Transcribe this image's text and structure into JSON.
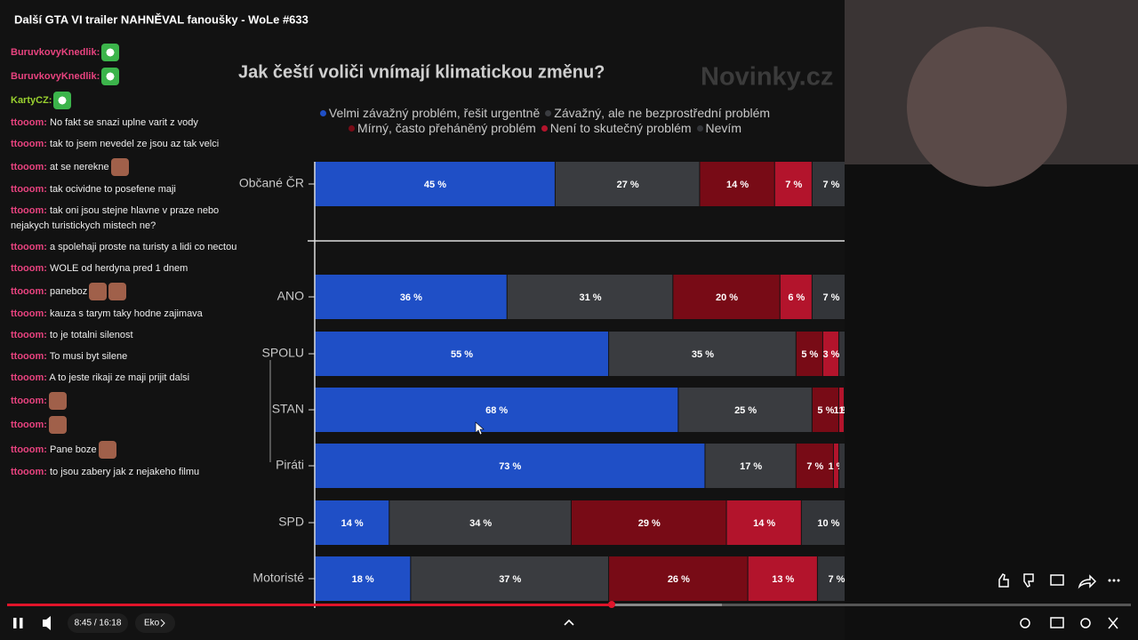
{
  "video_title": "Další GTA VI trailer NAHNĚVAL fanoušky - WoLe #633",
  "chat": [
    {
      "user": "BuruvkovyKnedlik:",
      "color": "#e8437f",
      "emotes": 1
    },
    {
      "user": "BuruvkovyKnedlik:",
      "color": "#e8437f",
      "emotes": 1
    },
    {
      "user": "KartyCZ:",
      "color": "#9ad12f",
      "emotes": 1
    },
    {
      "user": "ttooom:",
      "color": "#e8437f",
      "text": "No fakt se snazi uplne varit z vody"
    },
    {
      "user": "ttooom:",
      "color": "#e8437f",
      "text": "tak to jsem nevedel ze jsou az tak velci"
    },
    {
      "user": "ttooom:",
      "color": "#e8437f",
      "text": "at se nerekne",
      "emotes": 1
    },
    {
      "user": "ttooom:",
      "color": "#e8437f",
      "text": "tak ocividne to posefene maji"
    },
    {
      "user": "ttooom:",
      "color": "#e8437f",
      "text": "tak oni jsou stejne hlavne v praze nebo nejakych turistickych mistech ne?"
    },
    {
      "user": "ttooom:",
      "color": "#e8437f",
      "text": "a spolehaji proste na turisty a lidi co nectou"
    },
    {
      "user": "ttooom:",
      "color": "#e8437f",
      "text": "WOLE od herdyna pred 1 dnem"
    },
    {
      "user": "ttooom:",
      "color": "#e8437f",
      "text": "paneboz",
      "emotes": 2
    },
    {
      "user": "ttooom:",
      "color": "#e8437f",
      "text": "kauza s tarym taky hodne zajimava"
    },
    {
      "user": "ttooom:",
      "color": "#e8437f",
      "text": "to je totalni silenost"
    },
    {
      "user": "ttooom:",
      "color": "#e8437f",
      "text": "To musi byt silene"
    },
    {
      "user": "ttooom:",
      "color": "#e8437f",
      "text": "A to jeste rikaji ze maji prijit dalsi"
    },
    {
      "user": "ttooom:",
      "color": "#e8437f",
      "emotes": 1
    },
    {
      "user": "ttooom:",
      "color": "#e8437f",
      "emotes": 1
    },
    {
      "user": "ttooom:",
      "color": "#e8437f",
      "text": "Pane boze",
      "emotes": 1
    },
    {
      "user": "ttooom:",
      "color": "#e8437f",
      "text": "to jsou zabery jak z nejakeho filmu"
    }
  ],
  "chart_data": {
    "type": "bar",
    "orientation": "horizontal",
    "stacked": true,
    "title": "Jak čeští voliči vnímají klimatickou změnu?",
    "watermark": "Novinky.cz",
    "categories": [
      "Občané ČR",
      "ANO",
      "SPOLU",
      "STAN",
      "Piráti",
      "SPD",
      "Motoristé"
    ],
    "xlim": [
      0,
      100
    ],
    "series": [
      {
        "name": "Velmi závažný problém, řešit urgentně",
        "color": "#1f4fc6",
        "values": [
          45,
          36,
          55,
          68,
          73,
          14,
          18
        ],
        "value_labels": [
          "45 %",
          "36 %",
          "55 %",
          "68 %",
          "73 %",
          "14 %",
          "18 %"
        ]
      },
      {
        "name": "Závažný, ale ne bezprostřední problém",
        "color": "#3a3c40",
        "values": [
          27,
          31,
          35,
          25,
          17,
          34,
          37
        ],
        "value_labels": [
          "27 %",
          "31 %",
          "35 %",
          "25 %",
          "17 %",
          "34 %",
          "37 %"
        ]
      },
      {
        "name": "Mírný, často přeháněný problém",
        "color": "#780b16",
        "values": [
          14,
          20,
          5,
          5,
          7,
          29,
          26
        ],
        "value_labels": [
          "14 %",
          "20 %",
          "5 %",
          "5 %",
          "7 %",
          "29 %",
          "26 %"
        ]
      },
      {
        "name": "Není to skutečný problém",
        "color": "#b3142c",
        "values": [
          7,
          6,
          3,
          1,
          1,
          14,
          13
        ],
        "value_labels": [
          "7 %",
          "6 %",
          "3 %",
          "1 %",
          "1 %",
          "14 %",
          "13 %"
        ]
      },
      {
        "name": "Nevím",
        "color": "#333539",
        "values": [
          7,
          7,
          2,
          1,
          2,
          10,
          7
        ],
        "value_labels": [
          "7 %",
          "7 %",
          null,
          "1 %",
          null,
          "10 %",
          "7 %"
        ]
      }
    ]
  },
  "player": {
    "time": "8:45 / 16:18",
    "chapter": "Eko"
  }
}
